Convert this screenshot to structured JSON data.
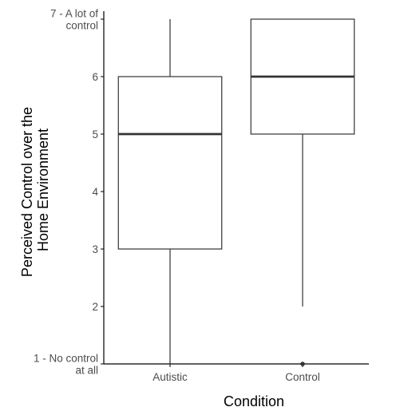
{
  "chart_data": {
    "type": "boxplot",
    "xlabel": "Condition",
    "ylabel_lines": [
      "Perceived Control over the",
      "Home Environment"
    ],
    "ylim": [
      1,
      7
    ],
    "y_ticks": [
      {
        "value": 1,
        "lines": [
          "1 - No control",
          "at all"
        ]
      },
      {
        "value": 2,
        "lines": [
          "2"
        ]
      },
      {
        "value": 3,
        "lines": [
          "3"
        ]
      },
      {
        "value": 4,
        "lines": [
          "4"
        ]
      },
      {
        "value": 5,
        "lines": [
          "5"
        ]
      },
      {
        "value": 6,
        "lines": [
          "6"
        ]
      },
      {
        "value": 7,
        "lines": [
          "7 - A lot of",
          "control"
        ]
      }
    ],
    "categories": [
      "Autistic",
      "Control"
    ],
    "boxes": [
      {
        "category": "Autistic",
        "whisker_low": 1,
        "q1": 3,
        "median": 5,
        "q3": 6,
        "whisker_high": 7,
        "outliers": []
      },
      {
        "category": "Control",
        "whisker_low": 2,
        "q1": 5,
        "median": 6,
        "q3": 7,
        "whisker_high": 7,
        "outliers": [
          1
        ]
      }
    ],
    "grid": false,
    "colors": {
      "box_stroke": "#333333",
      "box_fill": "#ffffff",
      "axis": "#000000",
      "tick_text": "#4d4d4d"
    }
  }
}
